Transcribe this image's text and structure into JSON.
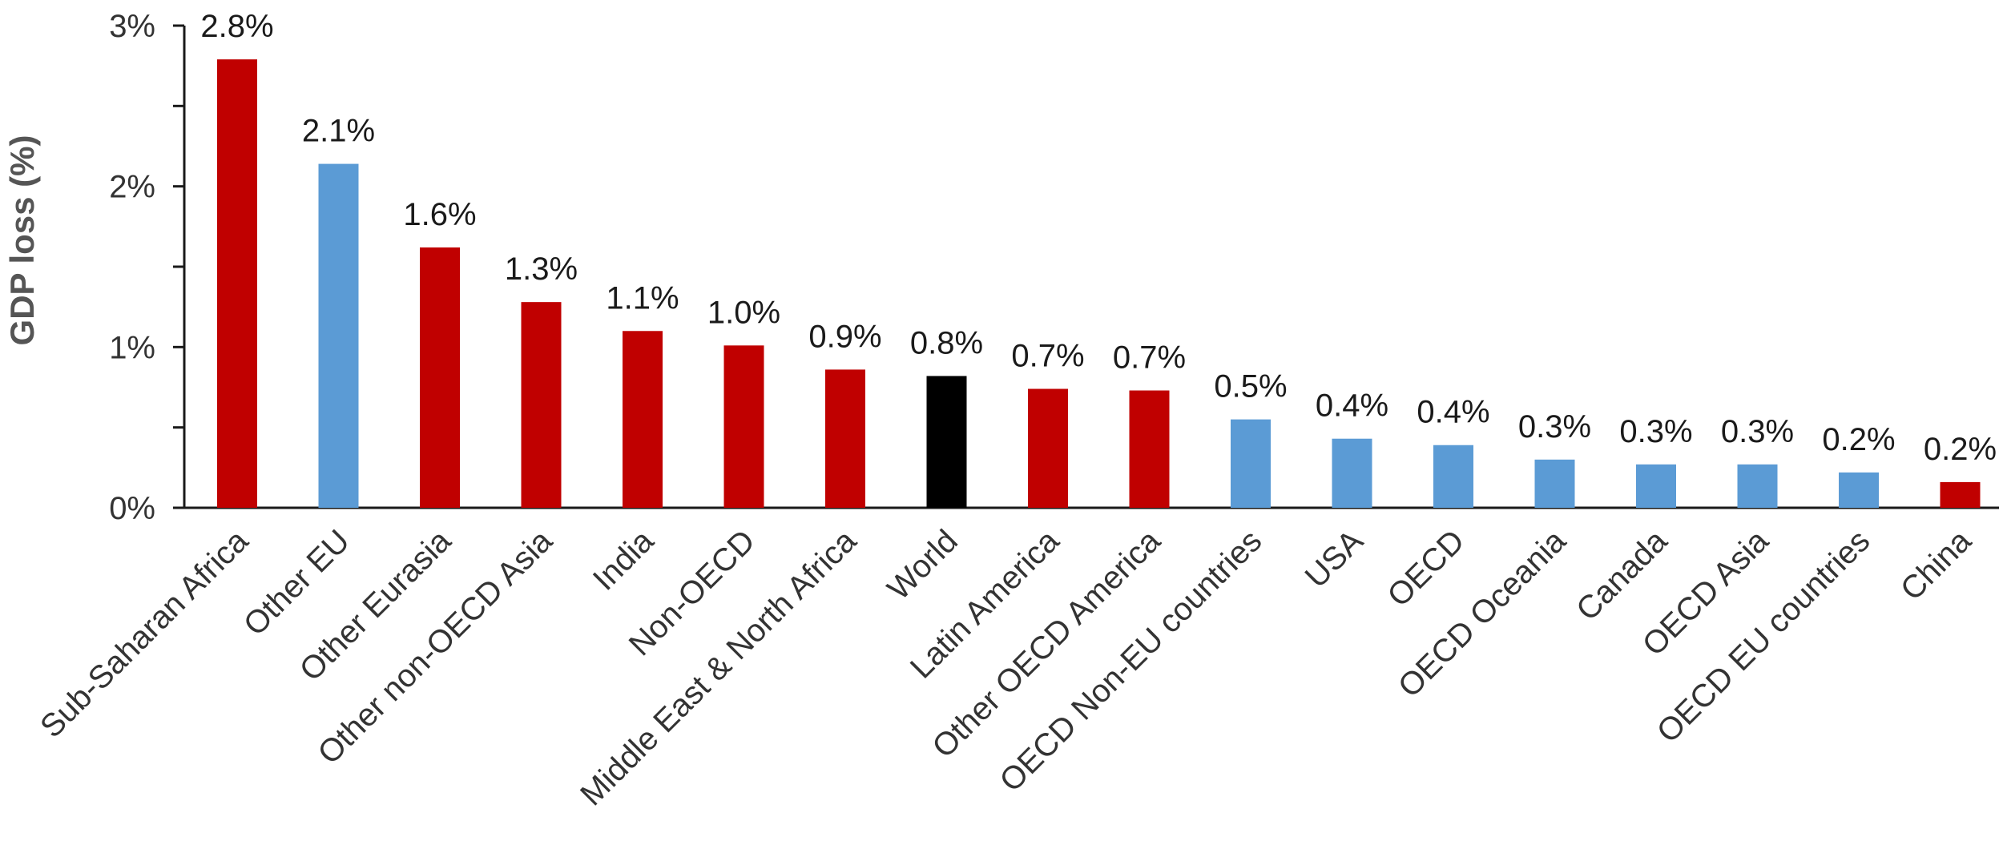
{
  "chart_data": {
    "type": "bar",
    "ylabel": "GDP loss (%)",
    "xlabel": "",
    "ylim": [
      0,
      3
    ],
    "yticks": [
      {
        "value": 0,
        "label": "0%"
      },
      {
        "value": 1,
        "label": "1%"
      },
      {
        "value": 2,
        "label": "2%"
      },
      {
        "value": 3,
        "label": "3%"
      }
    ],
    "grid": false,
    "legend": "none",
    "categories": [
      "Sub-Saharan Africa",
      "Other EU",
      "Other Eurasia",
      "Other non-OECD Asia",
      "India",
      "Non-OECD",
      "Middle East & North Africa",
      "World",
      "Latin America",
      "Other OECD America",
      "OECD Non-EU countries",
      "USA",
      "OECD",
      "OECD Oceania",
      "Canada",
      "OECD Asia",
      "OECD EU countries",
      "China"
    ],
    "values": [
      2.79,
      2.14,
      1.62,
      1.28,
      1.1,
      1.01,
      0.86,
      0.82,
      0.74,
      0.73,
      0.55,
      0.43,
      0.39,
      0.3,
      0.27,
      0.27,
      0.22,
      0.16
    ],
    "data_labels": [
      "2.8%",
      "2.1%",
      "1.6%",
      "1.3%",
      "1.1%",
      "1.0%",
      "0.9%",
      "0.8%",
      "0.7%",
      "0.7%",
      "0.5%",
      "0.4%",
      "0.4%",
      "0.3%",
      "0.3%",
      "0.3%",
      "0.2%",
      "0.2%"
    ],
    "bar_colors": [
      "#c00000",
      "#5b9bd5",
      "#c00000",
      "#c00000",
      "#c00000",
      "#c00000",
      "#c00000",
      "#000000",
      "#c00000",
      "#c00000",
      "#5b9bd5",
      "#5b9bd5",
      "#5b9bd5",
      "#5b9bd5",
      "#5b9bd5",
      "#5b9bd5",
      "#5b9bd5",
      "#c00000"
    ]
  }
}
